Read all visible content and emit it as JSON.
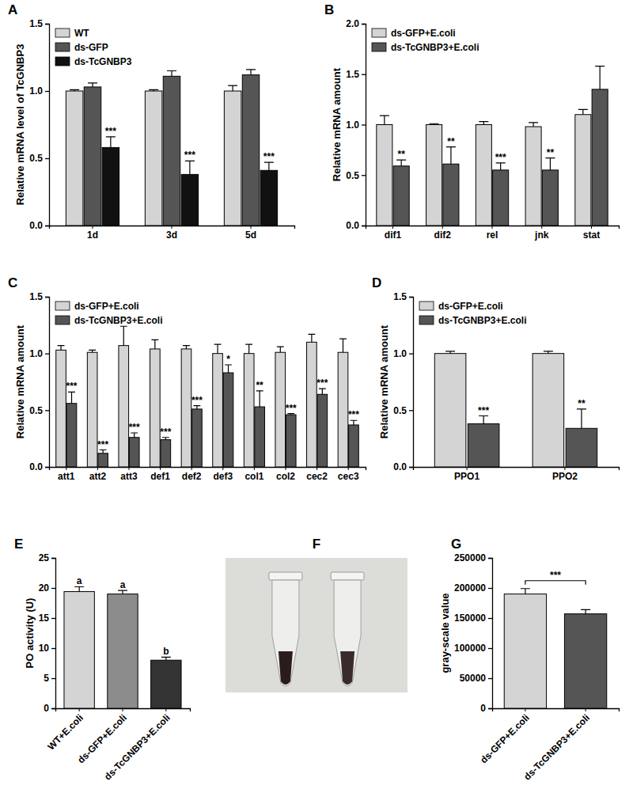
{
  "chart_data": [
    {
      "type": "bar",
      "label": "A",
      "y_label": "Relative mRNA level of TcGNBP3",
      "categories": [
        "1d",
        "3d",
        "5d"
      ],
      "series": [
        {
          "name": "WT",
          "color": "#d4d4d4",
          "values": [
            1.0,
            1.0,
            1.0
          ],
          "errors": [
            0.01,
            0.01,
            0.04
          ]
        },
        {
          "name": "ds-GFP",
          "color": "#555555",
          "values": [
            1.03,
            1.11,
            1.12
          ],
          "errors": [
            0.03,
            0.04,
            0.04
          ]
        },
        {
          "name": "ds-TcGNBP3",
          "color": "#111111",
          "values": [
            0.58,
            0.38,
            0.41
          ],
          "errors": [
            0.08,
            0.1,
            0.06
          ],
          "significance": [
            "***",
            "***",
            "***"
          ]
        }
      ],
      "ylim": [
        0,
        1.5
      ],
      "yticks": [
        {
          "value": 0,
          "label": "0.0"
        },
        {
          "value": 0.5,
          "label": "0.5"
        },
        {
          "value": 1,
          "label": "1.0"
        },
        {
          "value": 1.5,
          "label": "1.5"
        }
      ],
      "legend": "top-left"
    },
    {
      "type": "bar",
      "label": "B",
      "y_label": "Relative mRNA amount",
      "categories": [
        "dif1",
        "dif2",
        "rel",
        "jnk",
        "stat"
      ],
      "series": [
        {
          "name": "ds-GFP+E.coli",
          "color": "#d4d4d4",
          "values": [
            1.0,
            1.0,
            1.0,
            0.98,
            1.1
          ],
          "errors": [
            0.09,
            0.01,
            0.03,
            0.04,
            0.05
          ]
        },
        {
          "name": "ds-TcGNBP3+E.coli",
          "color": "#555555",
          "values": [
            0.59,
            0.61,
            0.55,
            0.55,
            1.35
          ],
          "errors": [
            0.06,
            0.17,
            0.07,
            0.12,
            0.23
          ],
          "significance": [
            "**",
            "**",
            "***",
            "**",
            null
          ]
        }
      ],
      "ylim": [
        0,
        2
      ],
      "yticks": [
        {
          "value": 0,
          "label": "0.0"
        },
        {
          "value": 0.5,
          "label": "0.5"
        },
        {
          "value": 1,
          "label": "1.0"
        },
        {
          "value": 1.5,
          "label": "1.5"
        },
        {
          "value": 2,
          "label": "2.0"
        }
      ],
      "legend": "top-left"
    },
    {
      "type": "bar",
      "label": "C",
      "y_label": "Relative mRNA amount",
      "categories": [
        "att1",
        "att2",
        "att3",
        "def1",
        "def2",
        "def3",
        "col1",
        "col2",
        "cec2",
        "cec3"
      ],
      "series": [
        {
          "name": "ds-GFP+E.coli",
          "color": "#d4d4d4",
          "values": [
            1.03,
            1.01,
            1.07,
            1.04,
            1.04,
            1.0,
            1.0,
            1.01,
            1.1,
            1.01
          ],
          "errors": [
            0.04,
            0.02,
            0.17,
            0.08,
            0.03,
            0.08,
            0.08,
            0.05,
            0.07,
            0.12
          ]
        },
        {
          "name": "ds-TcGNBP3+E.coli",
          "color": "#555555",
          "values": [
            0.56,
            0.12,
            0.26,
            0.24,
            0.51,
            0.83,
            0.53,
            0.46,
            0.64,
            0.37
          ],
          "errors": [
            0.1,
            0.03,
            0.04,
            0.02,
            0.03,
            0.07,
            0.14,
            0.01,
            0.05,
            0.04
          ],
          "significance": [
            "***",
            "***",
            "***",
            "***",
            "***",
            "*",
            "**",
            "***",
            "***",
            "***"
          ]
        }
      ],
      "ylim": [
        0,
        1.5
      ],
      "yticks": [
        {
          "value": 0,
          "label": "0.0"
        },
        {
          "value": 0.5,
          "label": "0.5"
        },
        {
          "value": 1,
          "label": "1.0"
        },
        {
          "value": 1.5,
          "label": "1.5"
        }
      ],
      "legend": "top-left"
    },
    {
      "type": "bar",
      "label": "D",
      "y_label": "Relative mRNA amount",
      "categories": [
        "PPO1",
        "PPO2"
      ],
      "series": [
        {
          "name": "ds-GFP+E.coli",
          "color": "#d4d4d4",
          "values": [
            1.0,
            1.0
          ],
          "errors": [
            0.02,
            0.02
          ]
        },
        {
          "name": "ds-TcGNBP3+E.coli",
          "color": "#555555",
          "values": [
            0.38,
            0.34
          ],
          "errors": [
            0.07,
            0.17
          ],
          "significance": [
            "***",
            "**"
          ]
        }
      ],
      "ylim": [
        0,
        1.5
      ],
      "yticks": [
        {
          "value": 0,
          "label": "0.0"
        },
        {
          "value": 0.5,
          "label": "0.5"
        },
        {
          "value": 1,
          "label": "1.0"
        },
        {
          "value": 1.5,
          "label": "1.5"
        }
      ],
      "legend": "top-left"
    },
    {
      "type": "bar",
      "label": "E",
      "y_label": "PO activity (U)",
      "categories": [
        "WT+E.coli",
        "ds-GFP+E.coli",
        "ds-TcGNBP3+E.coli"
      ],
      "values": [
        19.4,
        19.0,
        8.0
      ],
      "errors": [
        0.8,
        0.6,
        0.5
      ],
      "significance": [
        "a",
        "a",
        "b"
      ],
      "colors": [
        "#d4d4d4",
        "#8c8c8c",
        "#333333"
      ],
      "ylim": [
        0,
        25
      ],
      "yticks": [
        0,
        5,
        10,
        15,
        20,
        25
      ]
    },
    {
      "type": "image",
      "label": "F"
    },
    {
      "type": "bar",
      "label": "G",
      "y_label": "gray-scale value",
      "categories": [
        "ds-GFP+E.coli",
        "ds-TcGNBP3+E.coli"
      ],
      "values": [
        190000,
        157000
      ],
      "errors": [
        9000,
        7000
      ],
      "significance": "***",
      "colors": [
        "#d4d4d4",
        "#555555"
      ],
      "ylim": [
        0,
        250000
      ],
      "yticks": [
        0,
        50000,
        100000,
        150000,
        200000,
        250000
      ]
    }
  ]
}
